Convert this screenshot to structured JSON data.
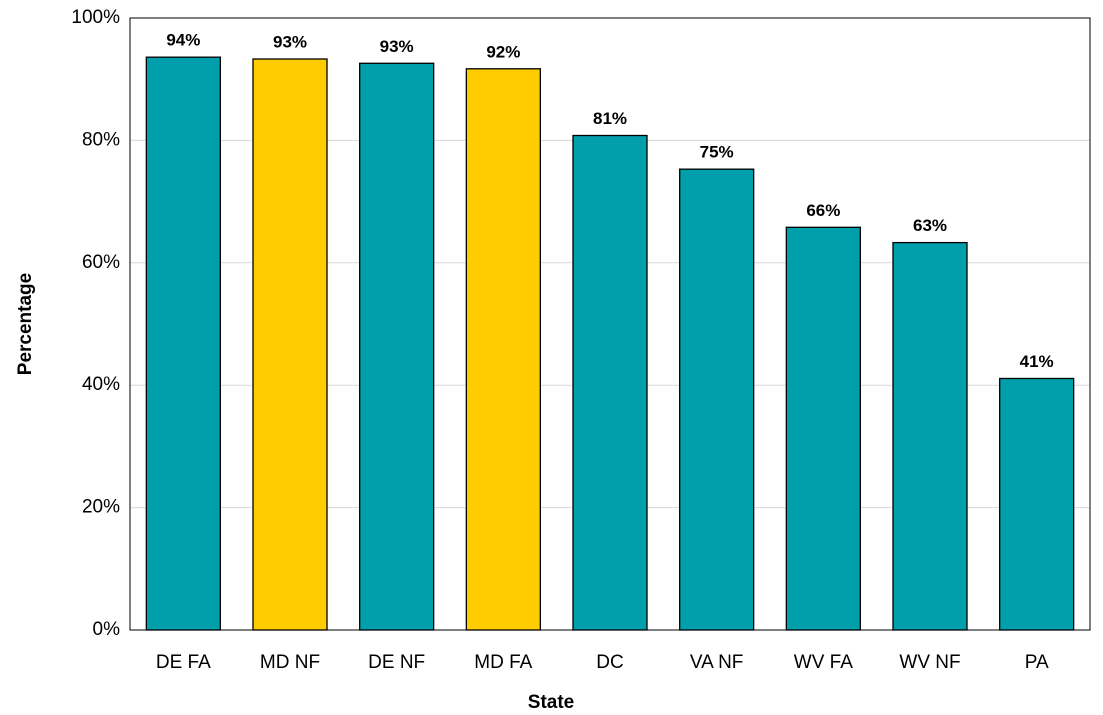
{
  "chart_data": {
    "type": "bar",
    "x_label": "State",
    "y_label": "Percentage",
    "categories": [
      "DE FA",
      "MD NF",
      "DE NF",
      "MD FA",
      "DC",
      "VA NF",
      "WV FA",
      "WV NF",
      "PA"
    ],
    "values": [
      93.6,
      93.3,
      92.6,
      91.7,
      80.8,
      75.3,
      65.8,
      63.3,
      41.1
    ],
    "value_labels": [
      "94%",
      "93%",
      "93%",
      "92%",
      "81%",
      "75%",
      "66%",
      "63%",
      "41%"
    ],
    "colors": [
      "#009fab",
      "#ffcc00",
      "#009fab",
      "#ffcc00",
      "#009fab",
      "#009fab",
      "#009fab",
      "#009fab",
      "#009fab"
    ],
    "ylim": [
      0,
      100
    ],
    "yticks": [
      {
        "value": 0,
        "label": "0%"
      },
      {
        "value": 20,
        "label": "20%"
      },
      {
        "value": 40,
        "label": "40%"
      },
      {
        "value": 60,
        "label": "60%"
      },
      {
        "value": 80,
        "label": "80%"
      },
      {
        "value": 100,
        "label": "100%"
      }
    ],
    "grid": true
  }
}
